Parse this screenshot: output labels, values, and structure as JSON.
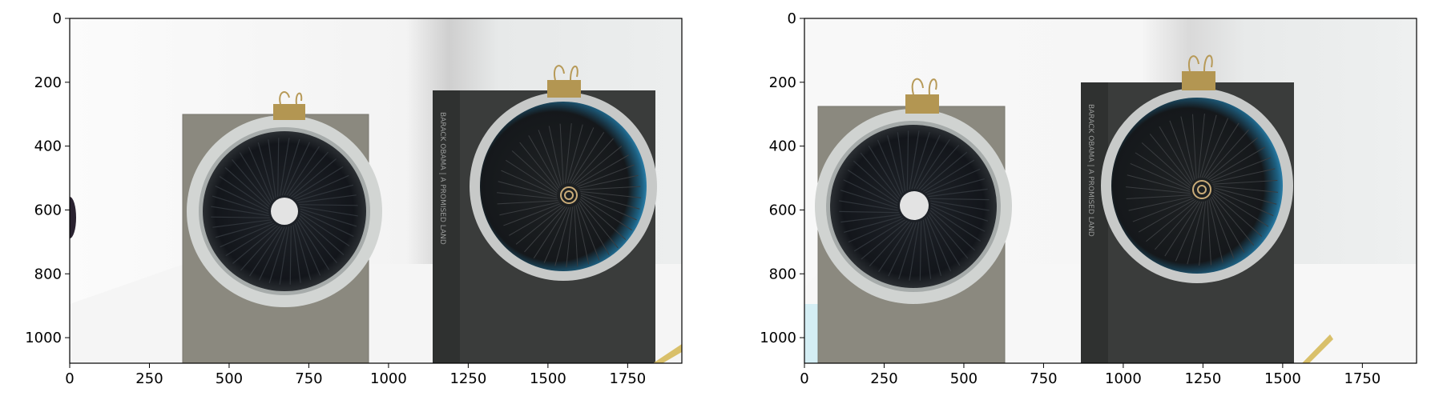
{
  "panels": [
    {
      "id": "left",
      "x_ticks": [
        "0",
        "250",
        "500",
        "750",
        "1000",
        "1250",
        "1500",
        "1750"
      ],
      "y_ticks": [
        "0",
        "200",
        "400",
        "600",
        "800",
        "1000"
      ],
      "scene": {
        "left_book": {
          "cover": "#8c8a80",
          "disk_center_x": 680,
          "disk_center_y": 610
        },
        "right_book": {
          "cover": "#3b3d3c",
          "spine_text": "BARACK OBAMA | A PROMISED LAND",
          "disk_center_x": 1560,
          "disk_center_y": 550
        }
      }
    },
    {
      "id": "right",
      "x_ticks": [
        "0",
        "250",
        "500",
        "750",
        "1000",
        "1250",
        "1500",
        "1750"
      ],
      "y_ticks": [
        "0",
        "200",
        "400",
        "600",
        "800",
        "1000"
      ],
      "scene": {
        "left_book": {
          "cover": "#8c8a80",
          "disk_center_x": 345,
          "disk_center_y": 590
        },
        "right_book": {
          "cover": "#3b3d3c",
          "spine_text": "BARACK OBAMA | A PROMISED LAND",
          "disk_center_x": 1250,
          "disk_center_y": 540
        }
      }
    }
  ],
  "colors": {
    "wall": "#f1f2f2",
    "table": "#f7f7f7",
    "disk_rim": "#c9ccca",
    "disk_inner": "#1c1f24",
    "clip": "#b79a58",
    "accent_blue": "#2a7ea8"
  }
}
